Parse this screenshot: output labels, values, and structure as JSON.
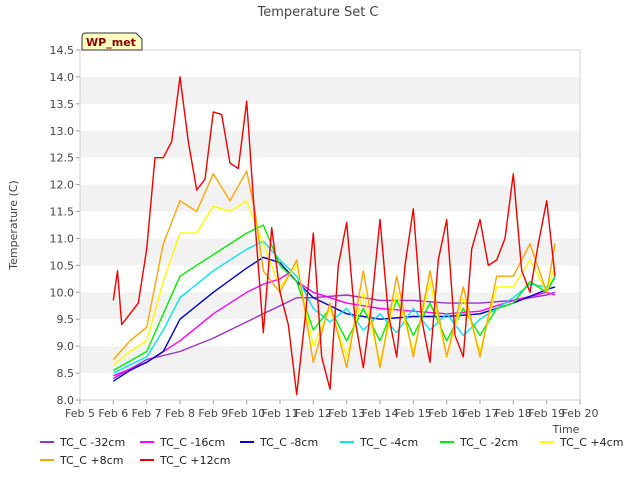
{
  "chart_data": {
    "type": "line",
    "title": "Temperature Set C",
    "xlabel": "Time",
    "ylabel": "Temperature (C)",
    "badge": "WP_met",
    "xlim": [
      "Feb 5",
      "Feb 20"
    ],
    "ylim": [
      8.0,
      14.5
    ],
    "x_tick_labels": [
      "Feb 5",
      "Feb 6",
      "Feb 7",
      "Feb 8",
      "Feb 9",
      "Feb 10",
      "Feb 11",
      "Feb 12",
      "Feb 13",
      "Feb 14",
      "Feb 15",
      "Feb 16",
      "Feb 17",
      "Feb 18",
      "Feb 19",
      "Feb 20"
    ],
    "y_tick_labels": [
      "8.0",
      "8.5",
      "9.0",
      "9.5",
      "10.0",
      "10.5",
      "11.0",
      "11.5",
      "12.0",
      "12.5",
      "13.0",
      "13.5",
      "14.0",
      "14.5"
    ],
    "legend_position": "bottom",
    "grid": "horizontal bands",
    "series": [
      {
        "name": "TC_C -32cm",
        "color": "#9932cc",
        "x": [
          "Feb 6 00:00",
          "Feb 7 00:00",
          "Feb 8 00:00",
          "Feb 9 00:00",
          "Feb 10 00:00",
          "Feb 10 12:00",
          "Feb 11 00:00",
          "Feb 11 12:00",
          "Feb 12 00:00",
          "Feb 13 00:00",
          "Feb 14 00:00",
          "Feb 15 00:00",
          "Feb 16 00:00",
          "Feb 17 00:00",
          "Feb 18 00:00",
          "Feb 19 00:00",
          "Feb 19 06:00"
        ],
        "y": [
          8.4,
          8.75,
          8.9,
          9.15,
          9.45,
          9.6,
          9.75,
          9.9,
          9.9,
          9.95,
          9.85,
          9.85,
          9.8,
          9.8,
          9.85,
          9.95,
          10.0
        ]
      },
      {
        "name": "TC_C -16cm",
        "color": "#ff00ff",
        "x": [
          "Feb 6 00:00",
          "Feb 7 00:00",
          "Feb 8 00:00",
          "Feb 9 00:00",
          "Feb 10 00:00",
          "Feb 10 12:00",
          "Feb 11 00:00",
          "Feb 11 06:00",
          "Feb 11 12:00",
          "Feb 12 00:00",
          "Feb 13 00:00",
          "Feb 14 00:00",
          "Feb 15 00:00",
          "Feb 16 00:00",
          "Feb 17 00:00",
          "Feb 18 00:00",
          "Feb 19 00:00",
          "Feb 19 06:00"
        ],
        "y": [
          8.45,
          8.7,
          9.1,
          9.6,
          10.0,
          10.15,
          10.25,
          10.35,
          10.2,
          10.0,
          9.8,
          9.7,
          9.65,
          9.6,
          9.65,
          9.85,
          10.0,
          9.95
        ]
      },
      {
        "name": "TC_C -8cm",
        "color": "#0000cd",
        "x": [
          "Feb 6 00:00",
          "Feb 6 12:00",
          "Feb 7 00:00",
          "Feb 7 12:00",
          "Feb 8 00:00",
          "Feb 9 00:00",
          "Feb 10 00:00",
          "Feb 10 12:00",
          "Feb 11 00:00",
          "Feb 11 12:00",
          "Feb 12 00:00",
          "Feb 12 12:00",
          "Feb 13 00:00",
          "Feb 14 00:00",
          "Feb 15 00:00",
          "Feb 16 00:00",
          "Feb 17 00:00",
          "Feb 18 00:00",
          "Feb 19 00:00",
          "Feb 19 06:00"
        ],
        "y": [
          8.35,
          8.55,
          8.7,
          8.9,
          9.5,
          10.0,
          10.45,
          10.65,
          10.55,
          10.2,
          9.9,
          9.75,
          9.6,
          9.5,
          9.55,
          9.55,
          9.6,
          9.8,
          10.05,
          10.1
        ]
      },
      {
        "name": "TC_C -4cm",
        "color": "#00e5ee",
        "x": [
          "Feb 6 00:00",
          "Feb 7 00:00",
          "Feb 7 12:00",
          "Feb 8 00:00",
          "Feb 9 00:00",
          "Feb 10 00:00",
          "Feb 10 12:00",
          "Feb 11 00:00",
          "Feb 11 12:00",
          "Feb 12 00:00",
          "Feb 12 12:00",
          "Feb 13 00:00",
          "Feb 13 12:00",
          "Feb 14 00:00",
          "Feb 14 12:00",
          "Feb 15 00:00",
          "Feb 15 12:00",
          "Feb 16 00:00",
          "Feb 16 12:00",
          "Feb 17 00:00",
          "Feb 17 12:00",
          "Feb 18 00:00",
          "Feb 18 12:00",
          "Feb 19 00:00",
          "Feb 19 06:00"
        ],
        "y": [
          8.5,
          8.8,
          9.3,
          9.9,
          10.4,
          10.8,
          10.95,
          10.6,
          10.3,
          9.7,
          9.45,
          9.7,
          9.3,
          9.6,
          9.25,
          9.7,
          9.3,
          9.6,
          9.2,
          9.5,
          9.7,
          9.9,
          10.15,
          10.1,
          10.25
        ]
      },
      {
        "name": "TC_C -2cm",
        "color": "#00ee00",
        "x": [
          "Feb 6 00:00",
          "Feb 7 00:00",
          "Feb 7 12:00",
          "Feb 8 00:00",
          "Feb 9 00:00",
          "Feb 10 00:00",
          "Feb 10 12:00",
          "Feb 11 00:00",
          "Feb 11 12:00",
          "Feb 12 00:00",
          "Feb 12 12:00",
          "Feb 13 00:00",
          "Feb 13 12:00",
          "Feb 14 00:00",
          "Feb 14 12:00",
          "Feb 15 00:00",
          "Feb 15 12:00",
          "Feb 16 00:00",
          "Feb 16 12:00",
          "Feb 17 00:00",
          "Feb 17 12:00",
          "Feb 18 00:00",
          "Feb 18 12:00",
          "Feb 19 00:00",
          "Feb 19 06:00"
        ],
        "y": [
          8.55,
          8.9,
          9.6,
          10.3,
          10.7,
          11.1,
          11.25,
          10.5,
          10.2,
          9.3,
          9.7,
          9.1,
          9.7,
          9.1,
          9.85,
          9.2,
          9.8,
          9.1,
          9.7,
          9.2,
          9.7,
          9.8,
          10.2,
          10.0,
          10.3
        ]
      },
      {
        "name": "TC_C +4cm",
        "color": "#ffff00",
        "x": [
          "Feb 6 00:00",
          "Feb 6 12:00",
          "Feb 7 00:00",
          "Feb 7 12:00",
          "Feb 8 00:00",
          "Feb 8 12:00",
          "Feb 9 00:00",
          "Feb 9 12:00",
          "Feb 10 00:00",
          "Feb 10 06:00",
          "Feb 10 12:00",
          "Feb 11 00:00",
          "Feb 11 12:00",
          "Feb 12 00:00",
          "Feb 12 12:00",
          "Feb 13 00:00",
          "Feb 13 12:00",
          "Feb 14 00:00",
          "Feb 14 12:00",
          "Feb 15 00:00",
          "Feb 15 12:00",
          "Feb 16 00:00",
          "Feb 16 12:00",
          "Feb 17 00:00",
          "Feb 17 12:00",
          "Feb 18 00:00",
          "Feb 18 12:00",
          "Feb 19 00:00",
          "Feb 19 06:00"
        ],
        "y": [
          8.65,
          8.9,
          9.1,
          10.2,
          11.1,
          11.1,
          11.6,
          11.5,
          11.7,
          11.3,
          10.9,
          10.1,
          10.5,
          9.0,
          9.7,
          8.8,
          10.0,
          8.7,
          10.0,
          8.9,
          10.2,
          8.8,
          9.9,
          8.9,
          10.1,
          10.1,
          10.6,
          10.0,
          10.5
        ]
      },
      {
        "name": "TC_C +8cm",
        "color": "#ffa500",
        "x": [
          "Feb 6 00:00",
          "Feb 6 12:00",
          "Feb 7 00:00",
          "Feb 7 12:00",
          "Feb 8 00:00",
          "Feb 8 12:00",
          "Feb 9 00:00",
          "Feb 9 12:00",
          "Feb 10 00:00",
          "Feb 10 06:00",
          "Feb 10 12:00",
          "Feb 11 00:00",
          "Feb 11 12:00",
          "Feb 12 00:00",
          "Feb 12 12:00",
          "Feb 13 00:00",
          "Feb 13 12:00",
          "Feb 14 00:00",
          "Feb 14 12:00",
          "Feb 15 00:00",
          "Feb 15 12:00",
          "Feb 16 00:00",
          "Feb 16 12:00",
          "Feb 17 00:00",
          "Feb 17 12:00",
          "Feb 18 00:00",
          "Feb 18 12:00",
          "Feb 19 00:00",
          "Feb 19 06:00"
        ],
        "y": [
          8.75,
          9.1,
          9.35,
          10.9,
          11.7,
          11.5,
          12.2,
          11.7,
          12.25,
          11.5,
          10.4,
          10.0,
          10.6,
          8.7,
          9.8,
          8.6,
          10.4,
          8.6,
          10.3,
          8.8,
          10.4,
          8.8,
          10.1,
          8.8,
          10.3,
          10.3,
          10.9,
          10.0,
          10.9
        ]
      },
      {
        "name": "TC_C +12cm",
        "color": "#ee0000",
        "x": [
          "Feb 6 00:00",
          "Feb 6 03:00",
          "Feb 6 06:00",
          "Feb 6 12:00",
          "Feb 6 18:00",
          "Feb 7 00:00",
          "Feb 7 06:00",
          "Feb 7 12:00",
          "Feb 7 18:00",
          "Feb 8 00:00",
          "Feb 8 06:00",
          "Feb 8 12:00",
          "Feb 8 18:00",
          "Feb 9 00:00",
          "Feb 9 06:00",
          "Feb 9 12:00",
          "Feb 9 18:00",
          "Feb 10 00:00",
          "Feb 10 06:00",
          "Feb 10 12:00",
          "Feb 10 18:00",
          "Feb 11 00:00",
          "Feb 11 06:00",
          "Feb 11 12:00",
          "Feb 11 18:00",
          "Feb 12 00:00",
          "Feb 12 06:00",
          "Feb 12 12:00",
          "Feb 12 18:00",
          "Feb 13 00:00",
          "Feb 13 06:00",
          "Feb 13 12:00",
          "Feb 13 18:00",
          "Feb 14 00:00",
          "Feb 14 06:00",
          "Feb 14 12:00",
          "Feb 14 18:00",
          "Feb 15 00:00",
          "Feb 15 06:00",
          "Feb 15 12:00",
          "Feb 15 18:00",
          "Feb 16 00:00",
          "Feb 16 06:00",
          "Feb 16 12:00",
          "Feb 16 18:00",
          "Feb 17 00:00",
          "Feb 17 06:00",
          "Feb 17 12:00",
          "Feb 17 18:00",
          "Feb 18 00:00",
          "Feb 18 06:00",
          "Feb 18 12:00",
          "Feb 18 18:00",
          "Feb 19 00:00",
          "Feb 19 06:00"
        ],
        "y": [
          9.85,
          10.4,
          9.4,
          9.6,
          9.8,
          10.8,
          12.5,
          12.5,
          12.8,
          14.0,
          12.8,
          11.9,
          12.1,
          13.35,
          13.3,
          12.4,
          12.3,
          13.55,
          11.3,
          9.25,
          11.2,
          10.0,
          9.4,
          8.1,
          9.5,
          11.1,
          8.8,
          8.2,
          10.5,
          11.3,
          9.5,
          8.6,
          9.8,
          11.35,
          9.6,
          8.8,
          10.5,
          11.55,
          9.5,
          8.7,
          10.6,
          11.35,
          9.2,
          8.8,
          10.8,
          11.35,
          10.5,
          10.6,
          11.0,
          12.2,
          10.4,
          10.0,
          10.9,
          11.7,
          10.3
        ]
      }
    ]
  }
}
